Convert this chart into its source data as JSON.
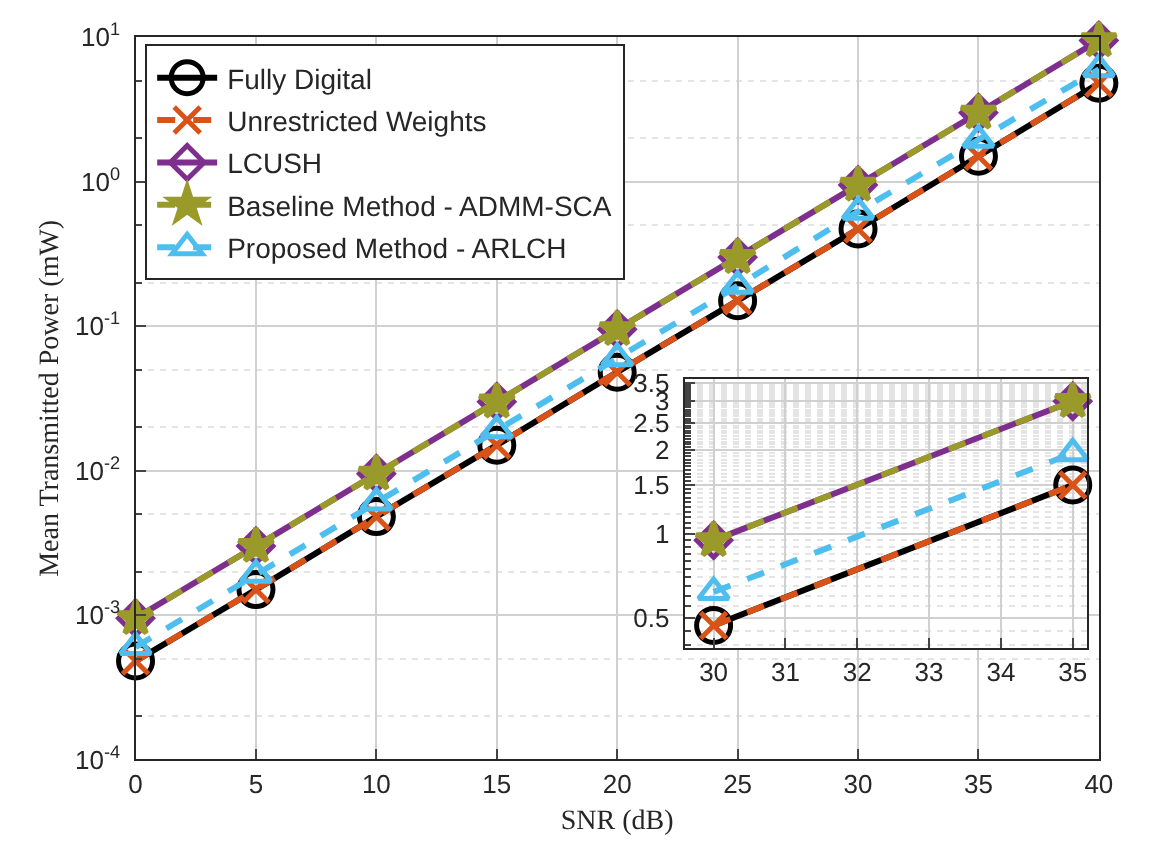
{
  "chart_data": [
    {
      "type": "line",
      "xlabel": "SNR (dB)",
      "ylabel": "Mean Transmitted Power (mW)",
      "x": [
        0,
        5,
        10,
        15,
        20,
        25,
        30,
        35,
        40
      ],
      "series": [
        {
          "name": "Fully Digital",
          "color": "#000000",
          "marker": "circle",
          "line_style": "solid",
          "values": [
            0.00048,
            0.0015,
            0.0048,
            0.015,
            0.048,
            0.15,
            0.47,
            1.5,
            4.8
          ]
        },
        {
          "name": "Unrestricted Weights",
          "color": "#d95319",
          "marker": "cross",
          "line_style": "dashed",
          "values": [
            0.00048,
            0.0015,
            0.0048,
            0.015,
            0.048,
            0.15,
            0.47,
            1.5,
            4.8
          ]
        },
        {
          "name": "LCUSH",
          "color": "#7e2f8e",
          "marker": "diamond",
          "line_style": "solid",
          "values": [
            0.00095,
            0.003,
            0.0095,
            0.03,
            0.095,
            0.3,
            0.95,
            3,
            9.5
          ]
        },
        {
          "name": "Baseline Method - ADMM-SCA",
          "color": "#9a9a2a",
          "marker": "star",
          "line_style": "dashed",
          "values": [
            0.00095,
            0.003,
            0.0095,
            0.03,
            0.095,
            0.3,
            0.95,
            3,
            9.5
          ]
        },
        {
          "name": "Proposed Method - ARLCH",
          "color": "#4dbeee",
          "marker": "triangle",
          "line_style": "dashed",
          "values": [
            0.0006,
            0.0019,
            0.006,
            0.019,
            0.06,
            0.19,
            0.62,
            1.95,
            6
          ]
        }
      ],
      "xlim": [
        0,
        40
      ],
      "xticks": [
        0,
        5,
        10,
        15,
        20,
        25,
        30,
        35,
        40
      ],
      "ylim": [
        0.0001,
        10
      ],
      "yticks": [
        {
          "value": 0.0001,
          "label": "10$^{-4}$"
        },
        {
          "value": 0.001,
          "label": "10$^{-3}$"
        },
        {
          "value": 0.01,
          "label": "10$^{-2}$"
        },
        {
          "value": 0.1,
          "label": "10$^{-1}$"
        },
        {
          "value": 1,
          "label": "10$^{0}$"
        },
        {
          "value": 10,
          "label": "10$^{1}$"
        }
      ],
      "log": "y",
      "grid": true,
      "legend": "top left"
    },
    {
      "type": "line",
      "x": [
        30,
        35
      ],
      "series": [
        {
          "color": "#000000",
          "marker": "circle",
          "line_style": "solid",
          "values": [
            0.47,
            1.5
          ]
        },
        {
          "color": "#d95319",
          "marker": "cross",
          "line_style": "dashed",
          "values": [
            0.47,
            1.5
          ]
        },
        {
          "color": "#7e2f8e",
          "marker": "diamond",
          "line_style": "solid",
          "values": [
            0.95,
            3
          ]
        },
        {
          "color": "#9a9a2a",
          "marker": "star",
          "line_style": "dashed",
          "values": [
            0.95,
            3
          ]
        },
        {
          "color": "#4dbeee",
          "marker": "triangle",
          "line_style": "dashed",
          "values": [
            0.62,
            1.95
          ]
        }
      ],
      "xlim": [
        29.6,
        35.2
      ],
      "xticks": [
        30,
        31,
        32,
        33,
        34,
        35
      ],
      "ylim": [
        0.39,
        3.6
      ],
      "yticks": [
        0.5,
        1,
        1.5,
        2,
        2.5,
        3,
        3.5
      ],
      "log": "y",
      "grid": true,
      "legend": false
    }
  ]
}
